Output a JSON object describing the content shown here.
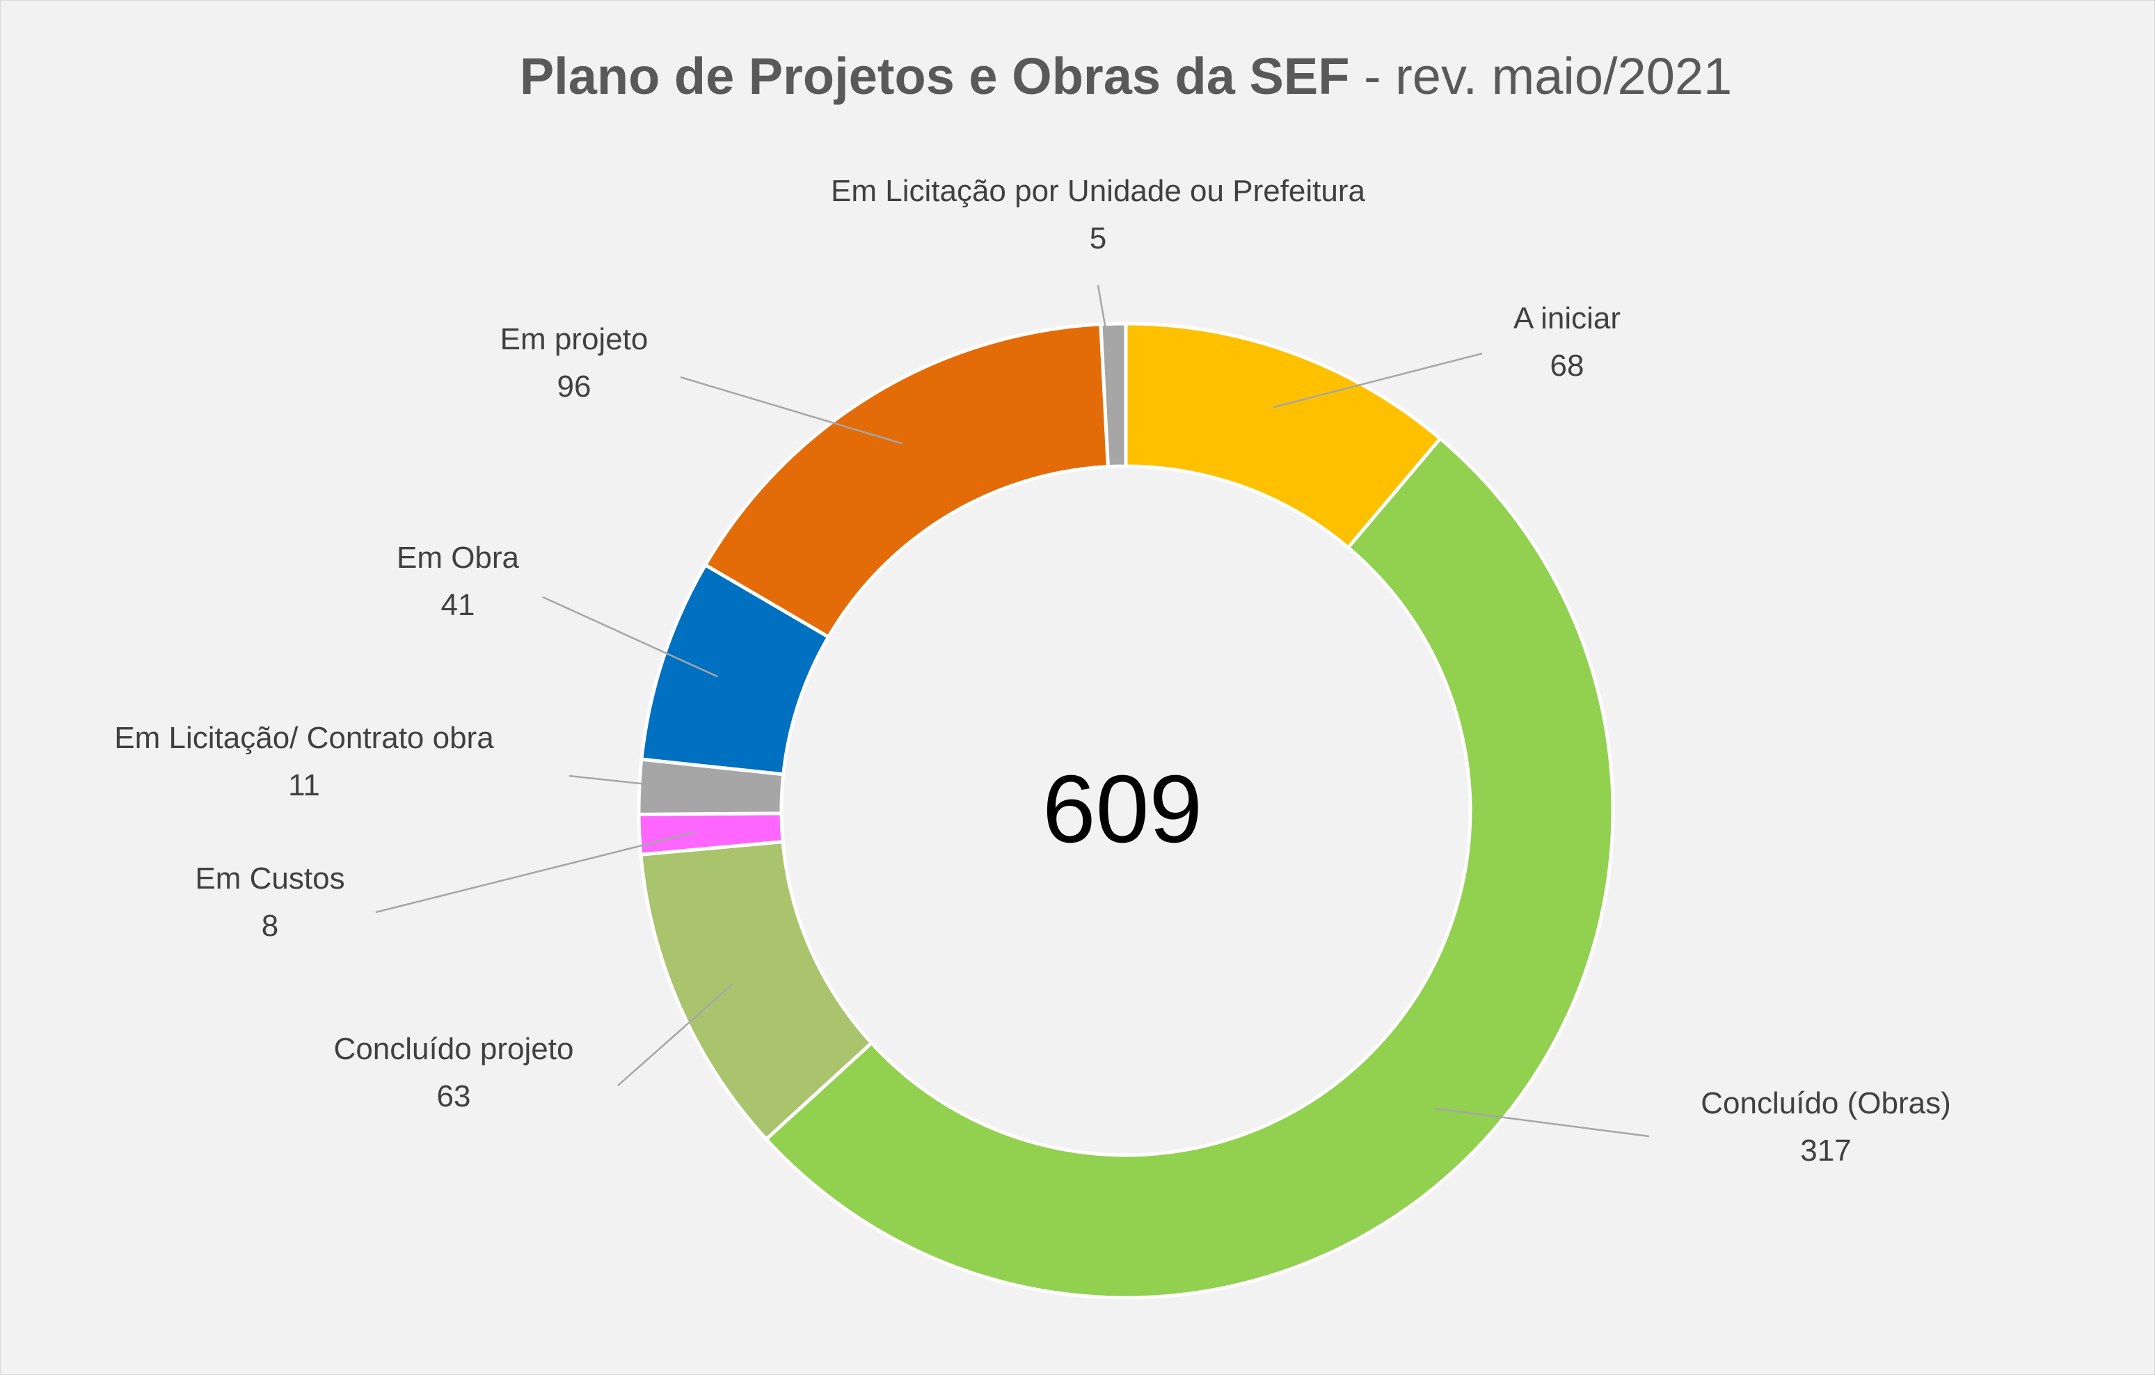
{
  "chart_data": {
    "type": "donut",
    "title_bold": "Plano de Projetos e Obras da SEF",
    "title_rest": " - rev. maio/2021",
    "center_total": "609",
    "slices": [
      {
        "name": "A iniciar",
        "value": 68,
        "color": "#ffc000"
      },
      {
        "name": "Concluído (Obras)",
        "value": 317,
        "color": "#92d050"
      },
      {
        "name": "Concluído projeto",
        "value": 63,
        "color": "#a9c46d"
      },
      {
        "name": "Em Custos",
        "value": 8,
        "color": "#ff66ff"
      },
      {
        "name": "Em Licitação/ Contrato obra",
        "value": 11,
        "color": "#a6a6a6"
      },
      {
        "name": "Em Obra",
        "value": 41,
        "color": "#0070c0"
      },
      {
        "name": "Em projeto",
        "value": 96,
        "color": "#e36c09"
      },
      {
        "name": "Em Licitação por Unidade ou Prefeitura",
        "value": 5,
        "color": "#a6a6a6"
      }
    ]
  }
}
